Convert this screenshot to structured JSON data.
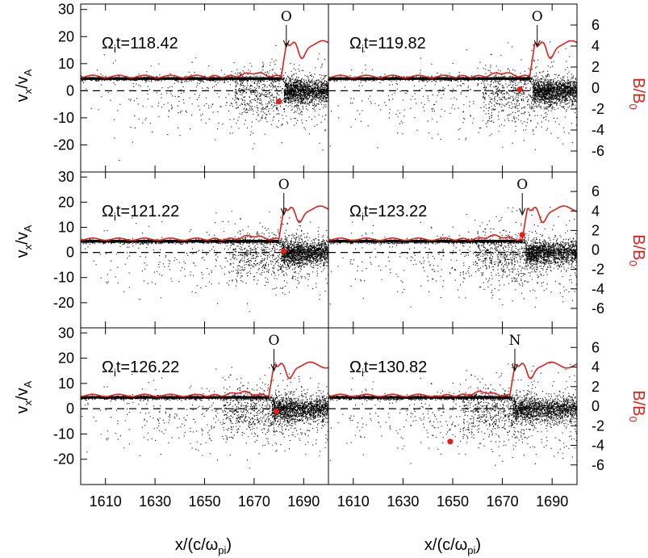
{
  "chart_data": {
    "type": "scatter",
    "layout": "3x2 panel grid with shared axes",
    "xlabel": "x/(c/ω",
    "xlabel_sub": "pi",
    "xlabel_close": ")",
    "ylabel_left": "v",
    "ylabel_left_sub1": "x",
    "ylabel_left_mid": "/v",
    "ylabel_left_sub2": "A",
    "ylabel_right": "B/B",
    "ylabel_right_sub": "0",
    "ylabel_right_color": "#e0201b",
    "xlim": [
      1600,
      1700
    ],
    "ylim_left": [
      -30,
      32
    ],
    "ylim_right": [
      -8,
      8
    ],
    "xticks": [
      1610,
      1630,
      1650,
      1670,
      1690
    ],
    "yticks_left": [
      -20,
      -10,
      0,
      10,
      20,
      30
    ],
    "yticks_right": [
      -6,
      -4,
      -2,
      0,
      2,
      4,
      6
    ],
    "series": [
      {
        "name": "particles",
        "color": "#000000",
        "kind": "scatter"
      },
      {
        "name": "B/B0",
        "color": "#e0201b",
        "kind": "line"
      },
      {
        "name": "tracked particle",
        "color": "#e0201b",
        "kind": "marker"
      }
    ],
    "panels": [
      {
        "time_label": "Ω",
        "time_sub": "i",
        "time_value": "t=118.42",
        "marker_label": "O",
        "shock_x": 1682,
        "marker_x": 1683,
        "particle": [
          1680,
          -4
        ]
      },
      {
        "time_label": "Ω",
        "time_sub": "i",
        "time_value": "t=119.82",
        "marker_label": "O",
        "shock_x": 1682,
        "marker_x": 1684,
        "particle": [
          1677,
          0.5
        ]
      },
      {
        "time_label": "Ω",
        "time_sub": "i",
        "time_value": "t=121.22",
        "marker_label": "O",
        "shock_x": 1681,
        "marker_x": 1682,
        "particle": [
          1682,
          0.5
        ]
      },
      {
        "time_label": "Ω",
        "time_sub": "i",
        "time_value": "t=123.22",
        "marker_label": "O",
        "shock_x": 1679,
        "marker_x": 1678,
        "particle": [
          1678,
          7
        ]
      },
      {
        "time_label": "Ω",
        "time_sub": "i",
        "time_value": "t=126.22",
        "marker_label": "O",
        "shock_x": 1677,
        "marker_x": 1678,
        "particle": [
          1679,
          -1
        ]
      },
      {
        "time_label": "Ω",
        "time_sub": "i",
        "time_value": "t=130.82",
        "marker_label": "N",
        "shock_x": 1674,
        "marker_x": 1675,
        "particle": [
          1649,
          -13
        ]
      }
    ]
  }
}
